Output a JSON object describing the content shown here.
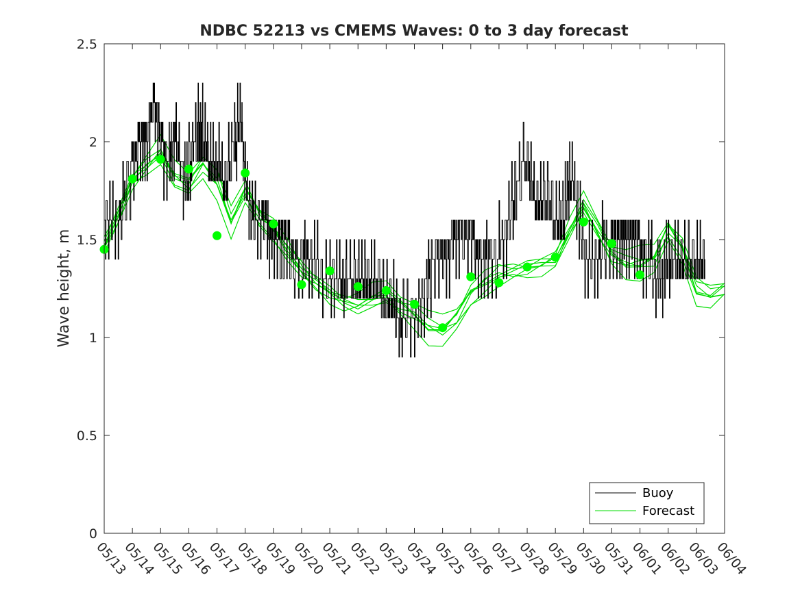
{
  "chart_data": {
    "type": "line",
    "title": "NDBC 52213 vs CMEMS Waves: 0 to 3 day forecast",
    "xlabel": "",
    "ylabel": "Wave height, m",
    "xlim": [
      "05/13",
      "06/04"
    ],
    "ylim": [
      0,
      2.5
    ],
    "yticks": [
      0,
      0.5,
      1,
      1.5,
      2,
      2.5
    ],
    "ytick_labels": [
      "0",
      "0.5",
      "1",
      "1.5",
      "2",
      "2.5"
    ],
    "xtick_labels": [
      "05/13",
      "05/14",
      "05/15",
      "05/16",
      "05/17",
      "05/18",
      "05/19",
      "05/20",
      "05/21",
      "05/22",
      "05/23",
      "05/24",
      "05/25",
      "05/26",
      "05/27",
      "05/28",
      "05/29",
      "05/30",
      "05/31",
      "06/01",
      "06/02",
      "06/03",
      "06/04"
    ],
    "grid": false,
    "legend": {
      "placement": "bottom-right",
      "entries": [
        {
          "label": "Buoy",
          "color": "#000000"
        },
        {
          "label": "Forecast",
          "color": "#00dd00"
        }
      ]
    },
    "colors": {
      "buoy": "#000000",
      "forecast": "#00ff00",
      "forecast_line": "#00dd00",
      "axis": "#262626"
    },
    "buoy_series": {
      "name": "Buoy",
      "x_day": [
        0,
        0.3,
        0.6,
        1.0,
        1.3,
        1.5,
        1.75,
        2.0,
        2.3,
        2.5,
        2.8,
        3.0,
        3.3,
        3.5,
        3.75,
        4.0,
        4.3,
        4.6,
        4.85,
        5.0,
        5.2,
        5.5,
        5.8,
        6.0,
        6.3,
        6.6,
        7.0,
        7.3,
        7.6,
        8.0,
        8.3,
        8.6,
        9.0,
        9.3,
        9.6,
        10.0,
        10.3,
        10.6,
        11.0,
        11.3,
        11.6,
        12.0,
        12.3,
        12.6,
        13.0,
        13.3,
        13.6,
        14.0,
        14.3,
        14.6,
        15.0,
        15.3,
        15.6,
        16.0,
        16.3,
        16.5,
        16.75,
        17.0,
        17.3,
        17.6,
        18.0,
        18.3,
        18.5,
        18.75,
        19.0,
        19.3,
        19.6,
        19.8,
        20.0,
        20.3,
        20.6,
        21.0,
        21.3
      ],
      "y": [
        1.6,
        1.55,
        1.65,
        1.9,
        2.0,
        2.0,
        2.2,
        2.0,
        1.85,
        2.05,
        1.8,
        1.85,
        2.05,
        2.05,
        1.9,
        1.9,
        1.8,
        2.0,
        2.1,
        1.8,
        1.65,
        1.55,
        1.55,
        1.45,
        1.45,
        1.45,
        1.4,
        1.4,
        1.35,
        1.3,
        1.25,
        1.3,
        1.3,
        1.3,
        1.3,
        1.2,
        1.15,
        1.1,
        1.1,
        1.2,
        1.35,
        1.4,
        1.45,
        1.55,
        1.5,
        1.4,
        1.4,
        1.45,
        1.55,
        1.8,
        1.9,
        1.7,
        1.75,
        1.6,
        1.6,
        1.85,
        1.7,
        1.45,
        1.4,
        1.45,
        1.5,
        1.55,
        1.5,
        1.45,
        1.45,
        1.4,
        1.3,
        1.3,
        1.4,
        1.4,
        1.35,
        1.35,
        1.4
      ]
    },
    "forecast_markers": {
      "name": "Forecast",
      "x_day": [
        0,
        1,
        2,
        3,
        4,
        5,
        6,
        7,
        8,
        9,
        10,
        11,
        12,
        13,
        14,
        15,
        16,
        17,
        18,
        19
      ],
      "y": [
        1.45,
        1.81,
        1.91,
        1.86,
        1.52,
        1.84,
        1.58,
        1.27,
        1.34,
        1.26,
        1.24,
        1.17,
        1.05,
        1.31,
        1.28,
        1.36,
        1.41,
        1.59,
        1.48,
        1.32
      ]
    },
    "forecast_runs_y_offsets": [
      0.0,
      -0.04,
      0.04,
      -0.08,
      0.07,
      -0.02,
      0.02
    ],
    "forecast_mean": {
      "x_day": [
        0,
        0.5,
        1.0,
        1.5,
        2.0,
        2.5,
        3.0,
        3.5,
        4.0,
        4.5,
        5.0,
        5.5,
        6.0,
        6.5,
        7.0,
        7.5,
        8.0,
        8.5,
        9.0,
        9.5,
        10.0,
        10.5,
        11.0,
        11.5,
        12.0,
        12.5,
        13.0,
        13.5,
        14.0,
        14.5,
        15.0,
        15.5,
        16.0,
        16.5,
        17.0,
        17.5,
        18.0,
        18.5,
        19.0,
        19.5,
        20.0,
        20.5,
        21.0,
        21.5,
        22.0
      ],
      "y": [
        1.47,
        1.62,
        1.8,
        1.88,
        1.95,
        1.82,
        1.78,
        1.88,
        1.8,
        1.6,
        1.75,
        1.62,
        1.55,
        1.45,
        1.35,
        1.28,
        1.22,
        1.18,
        1.17,
        1.2,
        1.22,
        1.16,
        1.12,
        1.06,
        1.04,
        1.1,
        1.22,
        1.28,
        1.33,
        1.34,
        1.35,
        1.37,
        1.4,
        1.55,
        1.68,
        1.55,
        1.42,
        1.38,
        1.38,
        1.4,
        1.55,
        1.45,
        1.25,
        1.22,
        1.25
      ]
    }
  }
}
